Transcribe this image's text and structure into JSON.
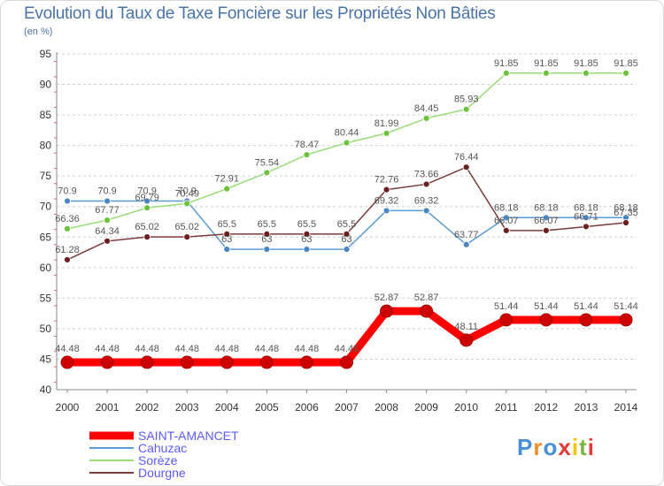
{
  "header": {
    "title": "Evolution du Taux de Taxe Foncière sur les Propriétés Non Bâties",
    "unit": "(en %)"
  },
  "chart_data": {
    "type": "line",
    "title": "Evolution du Taux de Taxe Foncière sur les Propriétés Non Bâties",
    "ylabel": "(en %)",
    "xlabel": "",
    "ylim": [
      40,
      95
    ],
    "yticks": [
      40,
      45,
      50,
      55,
      60,
      65,
      70,
      75,
      80,
      85,
      90,
      95
    ],
    "grid": "horizontal-dashed",
    "categories": [
      "2000",
      "2001",
      "2002",
      "2003",
      "2004",
      "2005",
      "2006",
      "2007",
      "2008",
      "2009",
      "2010",
      "2011",
      "2012",
      "2013",
      "2014"
    ],
    "series": [
      {
        "name": "Cahuzac",
        "color": "#5b9bd5",
        "marker": "#4a86c0",
        "values": [
          70.9,
          70.9,
          70.9,
          70.9,
          63,
          63,
          63,
          63,
          69.32,
          69.32,
          63.77,
          68.18,
          68.18,
          68.18,
          68.18
        ],
        "labels": [
          "70.9",
          "70.9",
          "70.9",
          "70.9",
          "63",
          "63",
          "63",
          "63",
          "69.32",
          "69.32",
          "63.77",
          "68.18",
          "68.18",
          "68.18",
          "68.18"
        ]
      },
      {
        "name": "Sorèze",
        "color": "#99dd77",
        "marker": "#6cc23a",
        "values": [
          66.36,
          67.77,
          69.79,
          70.49,
          72.91,
          75.54,
          78.47,
          80.44,
          81.99,
          84.45,
          85.93,
          91.85,
          91.85,
          91.85,
          91.85
        ],
        "labels": [
          "66.36",
          "67.77",
          "69.79",
          "70.49",
          "72.91",
          "75.54",
          "78.47",
          "80.44",
          "81.99",
          "84.45",
          "85.93",
          "91.85",
          "91.85",
          "91.85",
          "91.85"
        ]
      },
      {
        "name": "Dourgne",
        "color": "#7a3a3a",
        "marker": "#6a1e1e",
        "values": [
          61.28,
          64.34,
          65.02,
          65.02,
          65.5,
          65.5,
          65.5,
          65.5,
          72.76,
          73.66,
          76.44,
          66.07,
          66.07,
          66.71,
          67.35
        ],
        "labels": [
          "61.28",
          "64.34",
          "65.02",
          "65.02",
          "65.5",
          "65.5",
          "65.5",
          "65.5",
          "72.76",
          "73.66",
          "76.44",
          "66.07",
          "66.07",
          "66.71",
          "67.35"
        ]
      },
      {
        "name": "SAINT-AMANCET",
        "color": "#ff0000",
        "marker": "#cc0000",
        "values": [
          44.48,
          44.48,
          44.48,
          44.48,
          44.48,
          44.48,
          44.48,
          44.48,
          52.87,
          52.87,
          48.11,
          51.44,
          51.44,
          51.44,
          51.44
        ],
        "labels": [
          "44.48",
          "44.48",
          "44.48",
          "44.48",
          "44.48",
          "44.48",
          "44.48",
          "44.48",
          "52.87",
          "52.87",
          "48.11",
          "51.44",
          "51.44",
          "51.44",
          "51.44"
        ]
      }
    ]
  },
  "legend": {
    "items": [
      {
        "name": "SAINT-AMANCET",
        "color": "#ff0000"
      },
      {
        "name": "Cahuzac",
        "color": "#5b9bd5"
      },
      {
        "name": "Sorèze",
        "color": "#99dd77"
      },
      {
        "name": "Dourgne",
        "color": "#7a3a3a"
      }
    ]
  },
  "branding": {
    "logo_text": "Proxiti",
    "logo_colors": [
      "#4a90d9",
      "#f28c28",
      "#4a90d9",
      "#e53935",
      "#f2c200",
      "#7cb342",
      "#e53935"
    ]
  }
}
